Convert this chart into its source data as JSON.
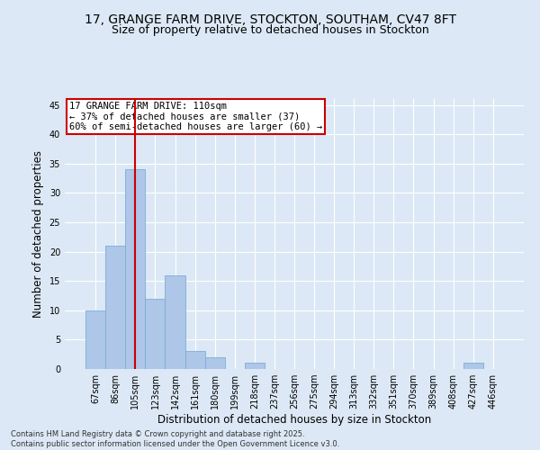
{
  "title_line1": "17, GRANGE FARM DRIVE, STOCKTON, SOUTHAM, CV47 8FT",
  "title_line2": "Size of property relative to detached houses in Stockton",
  "xlabel": "Distribution of detached houses by size in Stockton",
  "ylabel": "Number of detached properties",
  "categories": [
    "67sqm",
    "86sqm",
    "105sqm",
    "123sqm",
    "142sqm",
    "161sqm",
    "180sqm",
    "199sqm",
    "218sqm",
    "237sqm",
    "256sqm",
    "275sqm",
    "294sqm",
    "313sqm",
    "332sqm",
    "351sqm",
    "370sqm",
    "389sqm",
    "408sqm",
    "427sqm",
    "446sqm"
  ],
  "values": [
    10,
    21,
    34,
    12,
    16,
    3,
    2,
    0,
    1,
    0,
    0,
    0,
    0,
    0,
    0,
    0,
    0,
    0,
    0,
    1,
    0
  ],
  "bar_color": "#aec6e8",
  "bar_edge_color": "#7aafd4",
  "vline_x": 2,
  "vline_color": "#cc0000",
  "annotation_text": "17 GRANGE FARM DRIVE: 110sqm\n← 37% of detached houses are smaller (37)\n60% of semi-detached houses are larger (60) →",
  "annotation_box_color": "#ffffff",
  "annotation_box_edge_color": "#cc0000",
  "ylim": [
    0,
    46
  ],
  "yticks": [
    0,
    5,
    10,
    15,
    20,
    25,
    30,
    35,
    40,
    45
  ],
  "background_color": "#dce8f5",
  "plot_bg_color": "#dce8f5",
  "footer_text": "Contains HM Land Registry data © Crown copyright and database right 2025.\nContains public sector information licensed under the Open Government Licence v3.0.",
  "title_fontsize": 10,
  "subtitle_fontsize": 9,
  "tick_fontsize": 7,
  "label_fontsize": 8.5,
  "annotation_fontsize": 7.5,
  "footer_fontsize": 6
}
